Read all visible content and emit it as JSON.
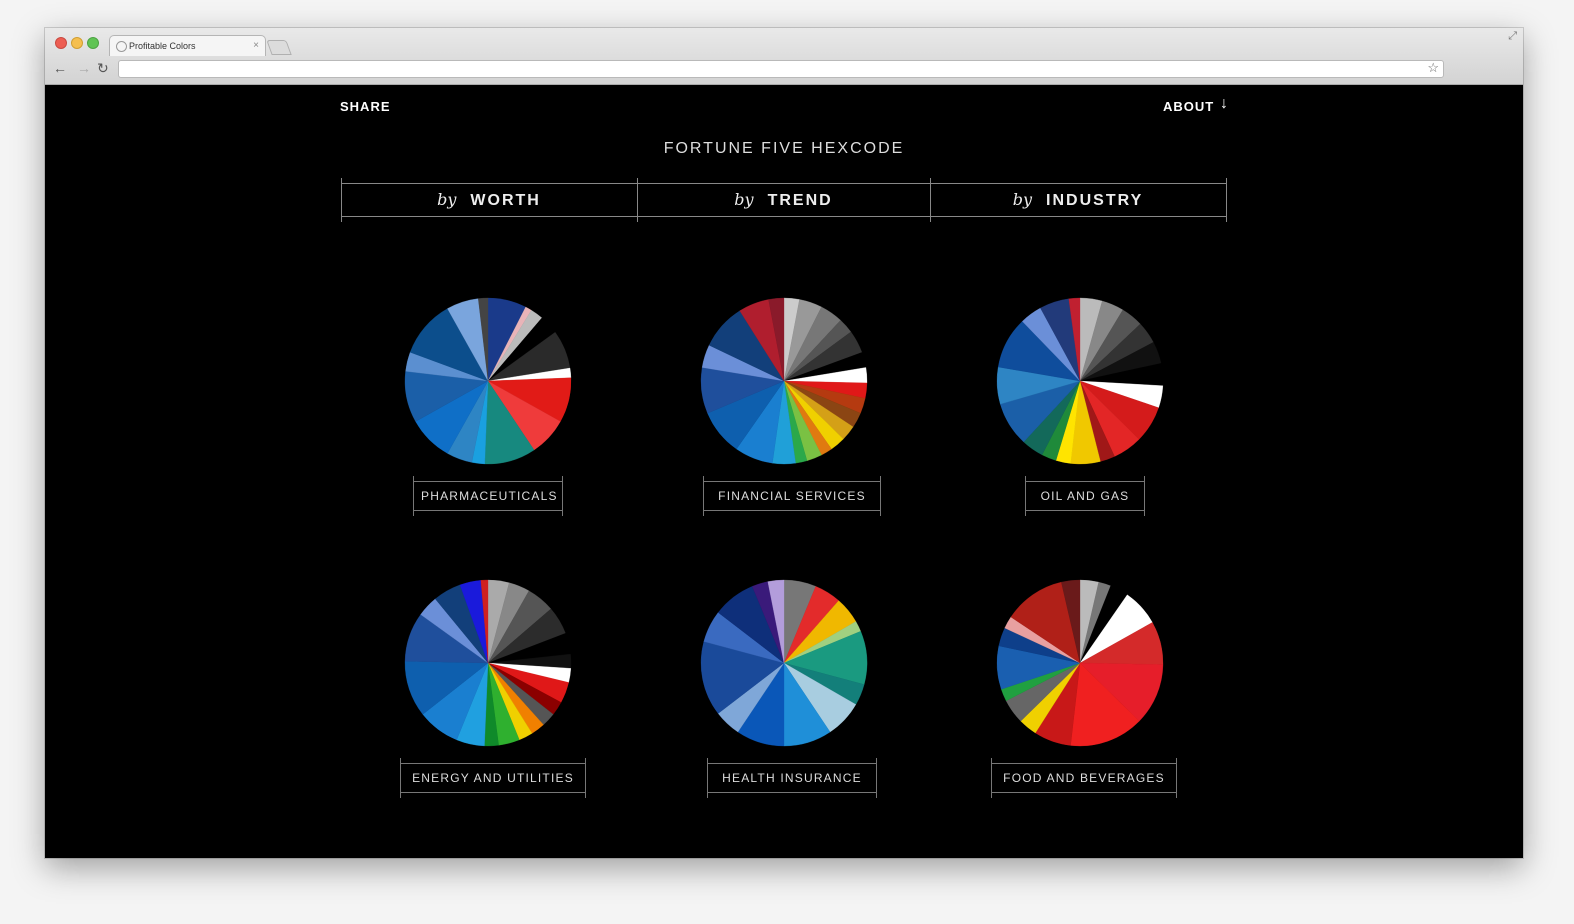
{
  "browser": {
    "tab_title": "Profitable Colors",
    "tab_close": "×",
    "url": ""
  },
  "nav": {
    "share": "SHARE",
    "about": "ABOUT",
    "about_arrow": "↓"
  },
  "site_title": "FORTUNE FIVE HEXCODE",
  "sort_tabs": [
    {
      "prefix": "by",
      "label": "WORTH"
    },
    {
      "prefix": "by",
      "label": "TREND"
    },
    {
      "prefix": "by",
      "label": "INDUSTRY"
    }
  ],
  "industries": [
    {
      "label": "PHARMACEUTICALS",
      "slices": [
        {
          "color": "#1a3a8a",
          "weight": 6
        },
        {
          "color": "#e8b4b8",
          "weight": 1
        },
        {
          "color": "#bbbbbb",
          "weight": 2
        },
        {
          "color": "#000000",
          "weight": 3
        },
        {
          "color": "#2a2a2a",
          "weight": 6
        },
        {
          "color": "#ffffff",
          "weight": 1.5
        },
        {
          "color": "#e11b17",
          "weight": 7
        },
        {
          "color": "#ef3b3b",
          "weight": 6
        },
        {
          "color": "#17897f",
          "weight": 8
        },
        {
          "color": "#1aa0e0",
          "weight": 2
        },
        {
          "color": "#2e85c4",
          "weight": 4
        },
        {
          "color": "#0f6fc7",
          "weight": 7
        },
        {
          "color": "#1b5fa8",
          "weight": 8
        },
        {
          "color": "#5b8fd0",
          "weight": 3
        },
        {
          "color": "#0c4e8c",
          "weight": 9
        },
        {
          "color": "#7aa5dd",
          "weight": 5
        },
        {
          "color": "#444444",
          "weight": 1.5
        }
      ]
    },
    {
      "label": "FINANCIAL SERVICES",
      "slices": [
        {
          "color": "#cccccc",
          "weight": 2
        },
        {
          "color": "#999999",
          "weight": 3
        },
        {
          "color": "#777777",
          "weight": 3
        },
        {
          "color": "#555555",
          "weight": 2
        },
        {
          "color": "#333333",
          "weight": 3
        },
        {
          "color": "#000000",
          "weight": 2
        },
        {
          "color": "#ffffff",
          "weight": 2
        },
        {
          "color": "#e01818",
          "weight": 2
        },
        {
          "color": "#b53a10",
          "weight": 2
        },
        {
          "color": "#8b4513",
          "weight": 2
        },
        {
          "color": "#d4a017",
          "weight": 2
        },
        {
          "color": "#f0d000",
          "weight": 2
        },
        {
          "color": "#e07a10",
          "weight": 1.5
        },
        {
          "color": "#7ac143",
          "weight": 2
        },
        {
          "color": "#2ba84a",
          "weight": 1.5
        },
        {
          "color": "#20a0d8",
          "weight": 3
        },
        {
          "color": "#1a7fd0",
          "weight": 5
        },
        {
          "color": "#0e5fae",
          "weight": 6
        },
        {
          "color": "#1f4f9c",
          "weight": 6
        },
        {
          "color": "#6b8fd8",
          "weight": 3
        },
        {
          "color": "#123f7a",
          "weight": 6
        },
        {
          "color": "#b01e2e",
          "weight": 4
        },
        {
          "color": "#8a1a2a",
          "weight": 2
        }
      ]
    },
    {
      "label": "OIL AND GAS",
      "slices": [
        {
          "color": "#bbbbbb",
          "weight": 3
        },
        {
          "color": "#888888",
          "weight": 3
        },
        {
          "color": "#555555",
          "weight": 3
        },
        {
          "color": "#333333",
          "weight": 3
        },
        {
          "color": "#111111",
          "weight": 3
        },
        {
          "color": "#000000",
          "weight": 3
        },
        {
          "color": "#ffffff",
          "weight": 3
        },
        {
          "color": "#d41b1b",
          "weight": 5
        },
        {
          "color": "#e32626",
          "weight": 4
        },
        {
          "color": "#a01818",
          "weight": 2
        },
        {
          "color": "#f0c800",
          "weight": 4
        },
        {
          "color": "#ffe400",
          "weight": 2
        },
        {
          "color": "#1f8a3a",
          "weight": 2
        },
        {
          "color": "#13695a",
          "weight": 3
        },
        {
          "color": "#1b5fa8",
          "weight": 6
        },
        {
          "color": "#2e85c4",
          "weight": 5
        },
        {
          "color": "#0f4d9c",
          "weight": 7
        },
        {
          "color": "#6b8fd8",
          "weight": 3
        },
        {
          "color": "#223a7a",
          "weight": 4
        },
        {
          "color": "#c02030",
          "weight": 1.5
        }
      ]
    },
    {
      "label": "ENERGY AND UTILITIES",
      "slices": [
        {
          "color": "#aaaaaa",
          "weight": 3
        },
        {
          "color": "#888888",
          "weight": 3
        },
        {
          "color": "#555555",
          "weight": 4
        },
        {
          "color": "#2c2c2c",
          "weight": 4
        },
        {
          "color": "#000000",
          "weight": 3
        },
        {
          "color": "#111111",
          "weight": 2
        },
        {
          "color": "#ffffff",
          "weight": 2
        },
        {
          "color": "#e01818",
          "weight": 3
        },
        {
          "color": "#8b0000",
          "weight": 2
        },
        {
          "color": "#555555",
          "weight": 2
        },
        {
          "color": "#f08000",
          "weight": 2
        },
        {
          "color": "#f0d000",
          "weight": 2
        },
        {
          "color": "#2fb02f",
          "weight": 3
        },
        {
          "color": "#0f8a2a",
          "weight": 2
        },
        {
          "color": "#20a0e0",
          "weight": 4
        },
        {
          "color": "#1a7fd0",
          "weight": 6
        },
        {
          "color": "#0e5fae",
          "weight": 8
        },
        {
          "color": "#1f4f9c",
          "weight": 7
        },
        {
          "color": "#6b8fd8",
          "weight": 3
        },
        {
          "color": "#123f7a",
          "weight": 4
        },
        {
          "color": "#1a1adb",
          "weight": 3
        },
        {
          "color": "#d02020",
          "weight": 1
        }
      ]
    },
    {
      "label": "HEALTH INSURANCE",
      "slices": [
        {
          "color": "#777777",
          "weight": 6
        },
        {
          "color": "#e32b2b",
          "weight": 5
        },
        {
          "color": "#f0b800",
          "weight": 5
        },
        {
          "color": "#a0d080",
          "weight": 2
        },
        {
          "color": "#1a9a80",
          "weight": 10
        },
        {
          "color": "#137f7a",
          "weight": 4
        },
        {
          "color": "#a8cde0",
          "weight": 7
        },
        {
          "color": "#1f8fd8",
          "weight": 9
        },
        {
          "color": "#0a57b8",
          "weight": 9
        },
        {
          "color": "#7fa7d8",
          "weight": 5
        },
        {
          "color": "#1a4a9a",
          "weight": 14
        },
        {
          "color": "#3a6ac0",
          "weight": 6
        },
        {
          "color": "#0e2f7a",
          "weight": 8
        },
        {
          "color": "#3a1a7a",
          "weight": 3
        },
        {
          "color": "#b39ddb",
          "weight": 3
        }
      ]
    },
    {
      "label": "FOOD AND BEVERAGES",
      "slices": [
        {
          "color": "#bbbbbb",
          "weight": 3
        },
        {
          "color": "#777777",
          "weight": 2
        },
        {
          "color": "#000000",
          "weight": 3
        },
        {
          "color": "#ffffff",
          "weight": 6
        },
        {
          "color": "#d42a2a",
          "weight": 7
        },
        {
          "color": "#e61e2a",
          "weight": 10
        },
        {
          "color": "#f02020",
          "weight": 12
        },
        {
          "color": "#c81818",
          "weight": 6
        },
        {
          "color": "#f0d000",
          "weight": 3
        },
        {
          "color": "#666666",
          "weight": 4
        },
        {
          "color": "#20a040",
          "weight": 2
        },
        {
          "color": "#1a5fb0",
          "weight": 7
        },
        {
          "color": "#0e3f8a",
          "weight": 3
        },
        {
          "color": "#e8a0a0",
          "weight": 2
        },
        {
          "color": "#b02018",
          "weight": 10
        },
        {
          "color": "#6a1a1a",
          "weight": 3
        }
      ]
    }
  ]
}
